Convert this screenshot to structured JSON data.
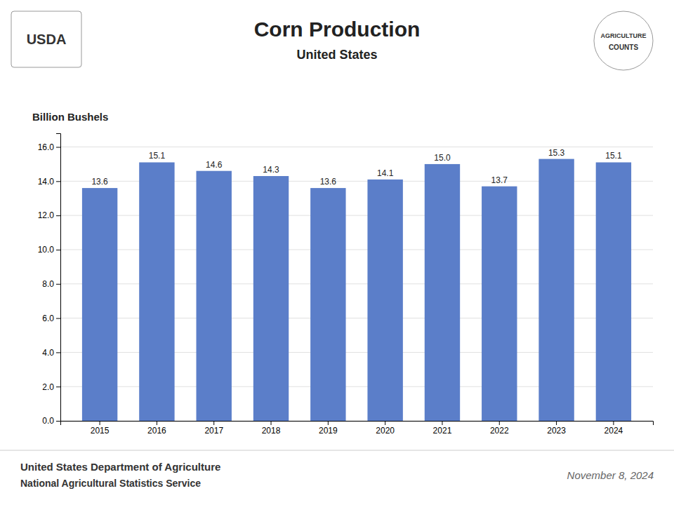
{
  "chart_data": {
    "type": "bar",
    "title": "Corn Production",
    "subtitle": "United States",
    "ylabel": "Billion Bushels",
    "categories": [
      "2015",
      "2016",
      "2017",
      "2018",
      "2019",
      "2020",
      "2021",
      "2022",
      "2023",
      "2024"
    ],
    "values": [
      13.6,
      15.1,
      14.6,
      14.3,
      13.6,
      14.1,
      15.0,
      13.7,
      15.3,
      15.1
    ],
    "value_labels": [
      "13.6",
      "15.1",
      "14.6",
      "14.3",
      "13.6",
      "14.1",
      "15.0",
      "13.7",
      "15.3",
      "15.1"
    ],
    "color": "#5b7ec9",
    "ylim": [
      0,
      16.8
    ],
    "yticks": [
      {
        "value": 0,
        "label": "0.0"
      },
      {
        "value": 2,
        "label": "2.0"
      },
      {
        "value": 4,
        "label": "4.0"
      },
      {
        "value": 6,
        "label": "6.0"
      },
      {
        "value": 8,
        "label": "8.0"
      },
      {
        "value": 10,
        "label": "10.0"
      },
      {
        "value": 12,
        "label": "12.0"
      },
      {
        "value": 14,
        "label": "14.0"
      },
      {
        "value": 16,
        "label": "16.0"
      }
    ],
    "grid": true,
    "data_labels": true,
    "annotations": [
      "USDA",
      "AGRICULTURE",
      "COUNTS",
      "United States Department of Agriculture",
      "National Agricultural Statistics Service",
      "November 8, 2024"
    ]
  }
}
